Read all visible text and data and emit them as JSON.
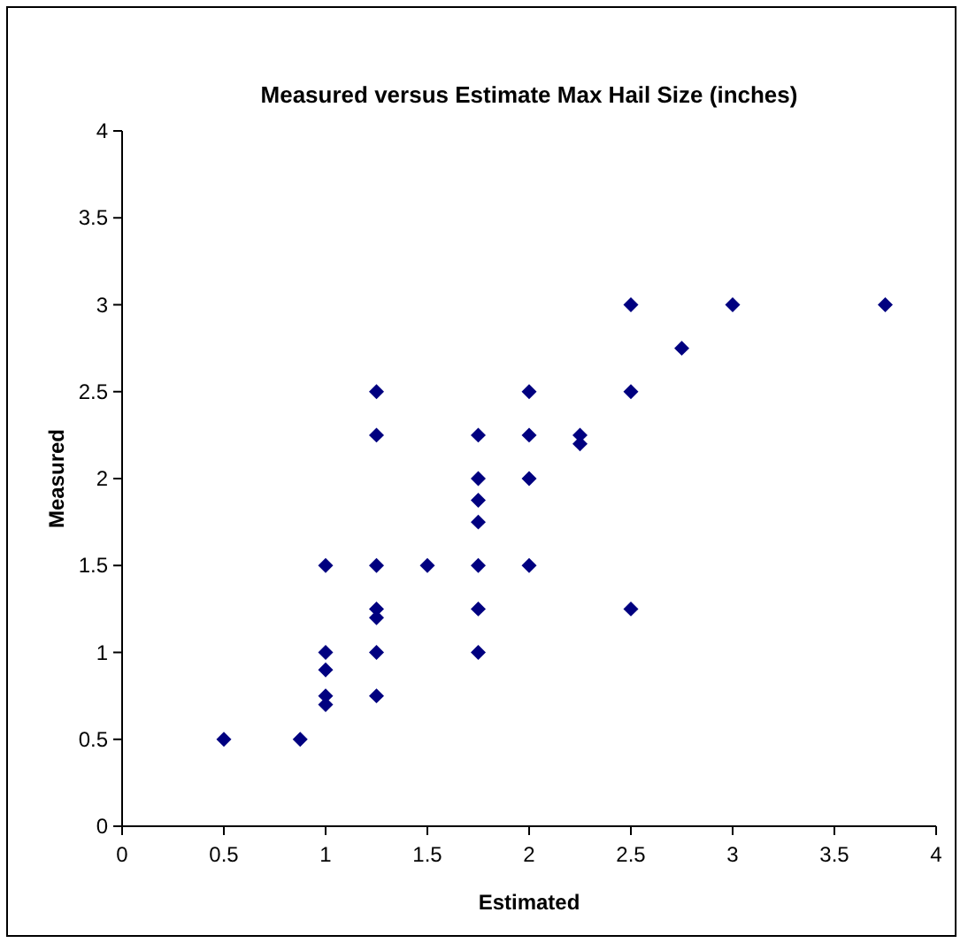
{
  "chart_data": {
    "type": "scatter",
    "title": "Measured versus Estimate Max Hail Size (inches)",
    "xlabel": "Estimated",
    "ylabel": "Measured",
    "marker": "diamond",
    "grid": false,
    "series": [
      {
        "color": "#000080",
        "x": [
          0.5,
          0.875,
          1,
          1,
          1,
          1,
          1,
          1.25,
          1.25,
          1.25,
          1.25,
          1.25,
          1.25,
          1.25,
          1.5,
          1.75,
          1.75,
          1.75,
          1.75,
          1.75,
          1.75,
          1.75,
          2,
          2,
          2,
          2,
          2.25,
          2.25,
          2.5,
          2.5,
          2.5,
          2.75,
          3,
          3.75
        ],
        "values": [
          0.5,
          0.5,
          1.5,
          1,
          0.9,
          0.75,
          0.7,
          2.5,
          2.25,
          1.5,
          1.25,
          1.2,
          1,
          0.75,
          1.5,
          2.25,
          2,
          1.875,
          1.75,
          1.5,
          1.25,
          1,
          2.5,
          2.25,
          2,
          1.5,
          2.25,
          2.2,
          3,
          2.5,
          1.25,
          2.75,
          3,
          3
        ]
      }
    ],
    "xlim": [
      0,
      4
    ],
    "xticks": [
      0,
      0.5,
      1,
      1.5,
      2,
      2.5,
      3,
      3.5,
      4
    ],
    "ylim": [
      0,
      4
    ],
    "yticks": [
      0,
      0.5,
      1,
      1.5,
      2,
      2.5,
      3,
      3.5,
      4
    ]
  }
}
